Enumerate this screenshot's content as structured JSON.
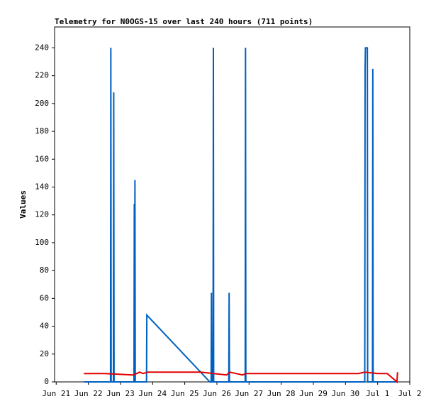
{
  "chart_data": {
    "type": "line",
    "title": "Telemetry for N0OGS-15 over last 240 hours (711 points)",
    "y_label": "Values",
    "xlim": [
      -0.05,
      11
    ],
    "ylim": [
      0,
      255
    ],
    "xticks": [
      {
        "value": 0,
        "label": "Jun 21"
      },
      {
        "value": 1,
        "label": "Jun 22"
      },
      {
        "value": 2,
        "label": "Jun 23"
      },
      {
        "value": 3,
        "label": "Jun 24"
      },
      {
        "value": 4,
        "label": "Jun 25"
      },
      {
        "value": 5,
        "label": "Jun 26"
      },
      {
        "value": 6,
        "label": "Jun 27"
      },
      {
        "value": 7,
        "label": "Jun 28"
      },
      {
        "value": 8,
        "label": "Jun 29"
      },
      {
        "value": 9,
        "label": "Jun 30"
      },
      {
        "value": 10,
        "label": "Jul 1"
      },
      {
        "value": 11,
        "label": "Jul 2"
      }
    ],
    "yticks": [
      0,
      20,
      40,
      60,
      80,
      100,
      120,
      140,
      160,
      180,
      200,
      220,
      240
    ],
    "series": [
      {
        "color": "#0060c0",
        "x": [
          0.86,
          1.69,
          1.7,
          1.71,
          1.78,
          1.79,
          1.8,
          2.42,
          2.43,
          2.44,
          2.45,
          2.46,
          2.81,
          2.82,
          4.78,
          4.82,
          4.83,
          4.84,
          4.88,
          4.89,
          4.9,
          5.37,
          5.38,
          5.39,
          5.88,
          5.89,
          5.9,
          9.6,
          9.61,
          9.62,
          9.63,
          9.68,
          9.69,
          9.84,
          9.85,
          9.86,
          10.6
        ],
        "values": [
          0,
          0,
          240,
          0,
          0,
          208,
          0,
          0,
          128,
          0,
          145,
          0,
          0,
          48,
          0,
          0,
          64,
          0,
          0,
          240,
          0,
          0,
          64,
          0,
          0,
          240,
          0,
          0,
          225,
          240,
          240,
          240,
          0,
          0,
          225,
          0,
          0
        ]
      },
      {
        "color": "#e00000",
        "x": [
          0.86,
          1.5,
          2.4,
          2.6,
          2.7,
          2.85,
          4.5,
          4.9,
          5.3,
          5.4,
          5.8,
          5.9,
          9.4,
          9.6,
          10.0,
          10.3,
          10.6,
          10.62
        ],
        "values": [
          6,
          6,
          5,
          7,
          6,
          7,
          7,
          6,
          5,
          7,
          5,
          6,
          6,
          7,
          6,
          6,
          0,
          7
        ]
      }
    ]
  }
}
